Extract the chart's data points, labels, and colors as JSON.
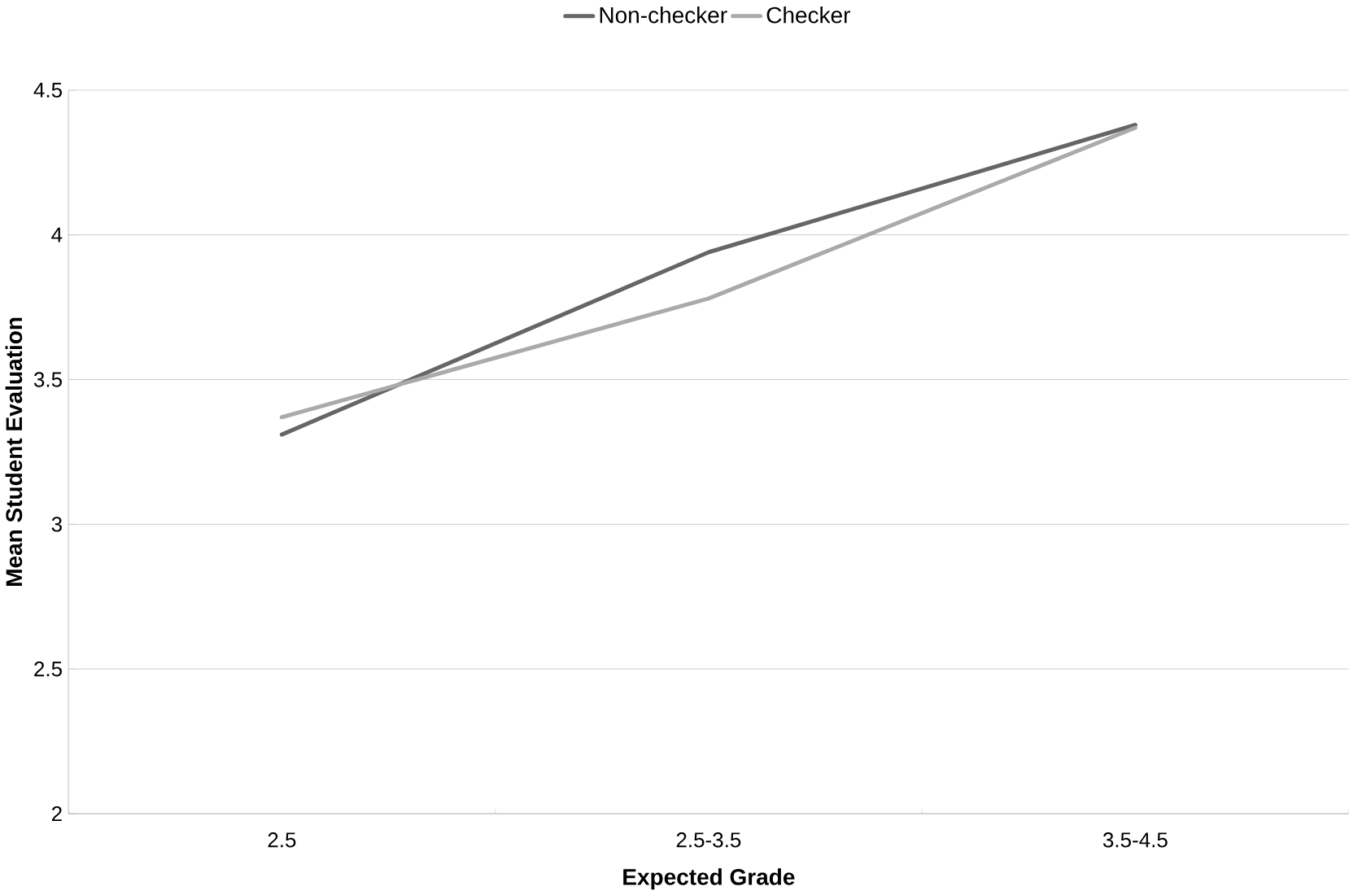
{
  "chart_data": {
    "type": "line",
    "xlabel": "Expected Grade",
    "ylabel": "Mean Student Evaluation",
    "categories": [
      "2.5",
      "2.5-3.5",
      "3.5-4.5"
    ],
    "series": [
      {
        "name": "Non-checker",
        "color": "#666666",
        "values": [
          3.31,
          3.94,
          4.38
        ]
      },
      {
        "name": "Checker",
        "color": "#aaaaaa",
        "values": [
          3.37,
          3.78,
          4.37
        ]
      }
    ],
    "ylim": [
      2,
      4.5
    ],
    "yticks": [
      2,
      2.5,
      3,
      3.5,
      4,
      4.5
    ],
    "grid": "y",
    "legend": "top",
    "marker": "none",
    "line_style": "solid"
  }
}
